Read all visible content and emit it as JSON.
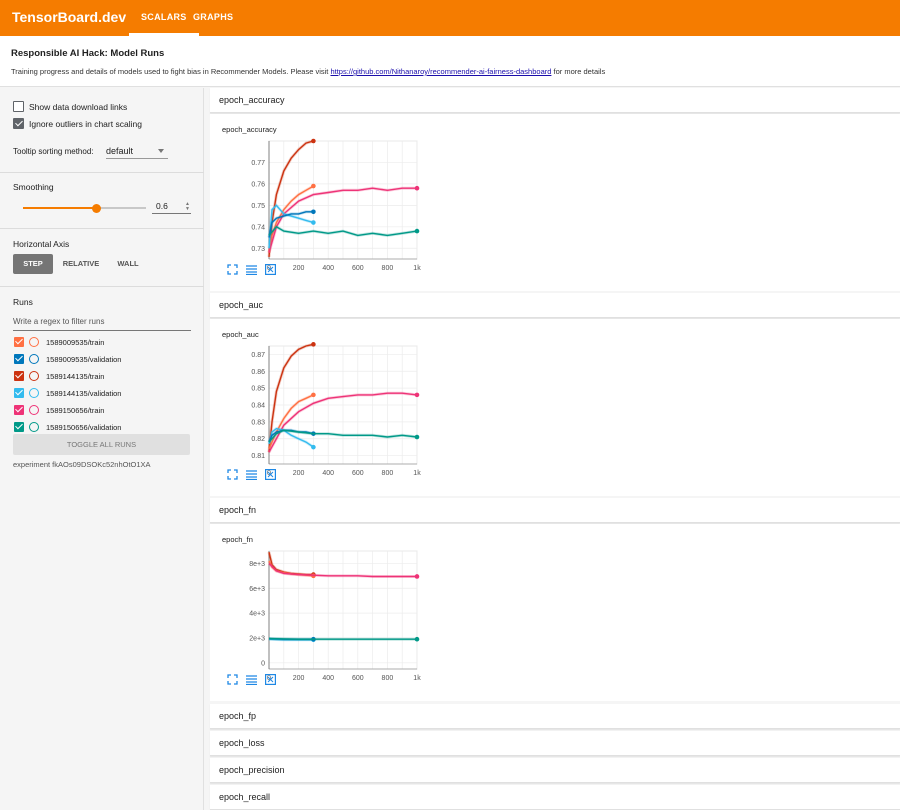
{
  "app": {
    "title": "TensorBoard.dev",
    "tabs": [
      {
        "label": "SCALARS",
        "active": true
      },
      {
        "label": "GRAPHS",
        "active": false
      }
    ],
    "accent_color": "#f57c00"
  },
  "header": {
    "title": "Responsible AI Hack: Model Runs",
    "desc_before": "Training progress and details of models used to fight bias in Recommender Models. Please visit ",
    "link_text": "https://github.com/Nithanaroy/recommender-ai-fairness-dashboard",
    "desc_after": " for more details"
  },
  "sidebar": {
    "show_download_label": "Show data download links",
    "show_download_checked": false,
    "ignore_outliers_label": "Ignore outliers in chart scaling",
    "ignore_outliers_checked": true,
    "tooltip_label": "Tooltip sorting method:",
    "tooltip_value": "default",
    "smoothing_label": "Smoothing",
    "smoothing_value": "0.6",
    "smoothing_fraction": 0.6,
    "axis_label": "Horizontal Axis",
    "axis_options": [
      "STEP",
      "RELATIVE",
      "WALL"
    ],
    "axis_selected": "STEP",
    "runs_label": "Runs",
    "filter_placeholder": "Write a regex to filter runs",
    "runs": [
      {
        "name": "1589009535/train",
        "color": "#ff7043"
      },
      {
        "name": "1589009535/validation",
        "color": "#0077bb"
      },
      {
        "name": "1589144135/train",
        "color": "#cc3311"
      },
      {
        "name": "1589144135/validation",
        "color": "#33bbee"
      },
      {
        "name": "1589150656/train",
        "color": "#ee3377"
      },
      {
        "name": "1589150656/validation",
        "color": "#009988"
      }
    ],
    "toggle_all_label": "TOGGLE ALL RUNS",
    "experiment_id": "experiment fkAOs09DSOKc52nhOtO1XA"
  },
  "panes": [
    {
      "name": "epoch_accuracy",
      "expanded": true
    },
    {
      "name": "epoch_auc",
      "expanded": true
    },
    {
      "name": "epoch_fn",
      "expanded": true
    },
    {
      "name": "epoch_fp",
      "expanded": false
    },
    {
      "name": "epoch_loss",
      "expanded": false
    },
    {
      "name": "epoch_precision",
      "expanded": false
    },
    {
      "name": "epoch_recall",
      "expanded": false
    }
  ],
  "chart_data": [
    {
      "type": "line",
      "title": "epoch_accuracy",
      "xticks": [
        "0",
        "200",
        "400",
        "600",
        "800",
        "1k"
      ],
      "yticks": [
        "0.73",
        "0.74",
        "0.75",
        "0.76",
        "0.77"
      ],
      "xlim": [
        0,
        1000
      ],
      "ylim": [
        0.725,
        0.78
      ],
      "grid": true,
      "series": [
        {
          "run": "1589144135/train",
          "color": "#cc3311",
          "x": [
            0,
            20,
            50,
            100,
            150,
            200,
            250,
            300
          ],
          "y": [
            0.726,
            0.742,
            0.755,
            0.766,
            0.772,
            0.776,
            0.779,
            0.78
          ]
        },
        {
          "run": "1589009535/train",
          "color": "#ff7043",
          "x": [
            0,
            20,
            50,
            100,
            150,
            200,
            250,
            300
          ],
          "y": [
            0.728,
            0.736,
            0.742,
            0.748,
            0.752,
            0.755,
            0.757,
            0.759
          ]
        },
        {
          "run": "1589150656/train",
          "color": "#ee3377",
          "x": [
            0,
            50,
            100,
            200,
            300,
            400,
            500,
            600,
            700,
            800,
            900,
            1000
          ],
          "y": [
            0.728,
            0.74,
            0.746,
            0.752,
            0.755,
            0.756,
            0.757,
            0.757,
            0.758,
            0.757,
            0.758,
            0.758
          ]
        },
        {
          "run": "1589144135/validation",
          "color": "#33bbee",
          "x": [
            0,
            20,
            50,
            100,
            150,
            200,
            250,
            300
          ],
          "y": [
            0.73,
            0.748,
            0.75,
            0.746,
            0.745,
            0.744,
            0.743,
            0.742
          ]
        },
        {
          "run": "1589009535/validation",
          "color": "#0077bb",
          "x": [
            0,
            20,
            50,
            100,
            150,
            200,
            250,
            300
          ],
          "y": [
            0.735,
            0.742,
            0.744,
            0.745,
            0.746,
            0.746,
            0.747,
            0.747
          ]
        },
        {
          "run": "1589150656/validation",
          "color": "#009988",
          "x": [
            0,
            50,
            100,
            200,
            300,
            400,
            500,
            600,
            700,
            800,
            900,
            1000
          ],
          "y": [
            0.736,
            0.74,
            0.738,
            0.737,
            0.738,
            0.737,
            0.738,
            0.736,
            0.737,
            0.736,
            0.737,
            0.738
          ]
        }
      ]
    },
    {
      "type": "line",
      "title": "epoch_auc",
      "xticks": [
        "0",
        "200",
        "400",
        "600",
        "800",
        "1k"
      ],
      "yticks": [
        "0.81",
        "0.82",
        "0.83",
        "0.84",
        "0.85",
        "0.86",
        "0.87"
      ],
      "xlim": [
        0,
        1000
      ],
      "ylim": [
        0.805,
        0.875
      ],
      "grid": true,
      "series": [
        {
          "run": "1589144135/train",
          "color": "#cc3311",
          "x": [
            0,
            20,
            50,
            100,
            150,
            200,
            250,
            300
          ],
          "y": [
            0.812,
            0.83,
            0.848,
            0.862,
            0.869,
            0.873,
            0.875,
            0.876
          ]
        },
        {
          "run": "1589009535/train",
          "color": "#ff7043",
          "x": [
            0,
            20,
            50,
            100,
            150,
            200,
            250,
            300
          ],
          "y": [
            0.814,
            0.818,
            0.824,
            0.832,
            0.838,
            0.842,
            0.844,
            0.846
          ]
        },
        {
          "run": "1589150656/train",
          "color": "#ee3377",
          "x": [
            0,
            50,
            100,
            200,
            300,
            400,
            500,
            600,
            700,
            800,
            900,
            1000
          ],
          "y": [
            0.812,
            0.82,
            0.828,
            0.836,
            0.841,
            0.844,
            0.845,
            0.846,
            0.846,
            0.847,
            0.847,
            0.846
          ]
        },
        {
          "run": "1589144135/validation",
          "color": "#33bbee",
          "x": [
            0,
            20,
            50,
            100,
            150,
            200,
            250,
            300
          ],
          "y": [
            0.817,
            0.824,
            0.826,
            0.825,
            0.822,
            0.82,
            0.818,
            0.815
          ]
        },
        {
          "run": "1589009535/validation",
          "color": "#0077bb",
          "x": [
            0,
            20,
            50,
            100,
            150,
            200,
            250,
            300
          ],
          "y": [
            0.818,
            0.822,
            0.824,
            0.825,
            0.825,
            0.824,
            0.824,
            0.823
          ]
        },
        {
          "run": "1589150656/validation",
          "color": "#009988",
          "x": [
            0,
            50,
            100,
            200,
            300,
            400,
            500,
            600,
            700,
            800,
            900,
            1000
          ],
          "y": [
            0.818,
            0.823,
            0.825,
            0.824,
            0.823,
            0.823,
            0.822,
            0.822,
            0.822,
            0.821,
            0.822,
            0.821
          ]
        }
      ]
    },
    {
      "type": "line",
      "title": "epoch_fn",
      "xticks": [
        "0",
        "200",
        "400",
        "600",
        "800",
        "1k"
      ],
      "yticks": [
        "0",
        "2e+3",
        "4e+3",
        "6e+3",
        "8e+3"
      ],
      "xlim": [
        0,
        1000
      ],
      "ylim": [
        -500,
        9000
      ],
      "grid": true,
      "series": [
        {
          "run": "1589144135/train",
          "color": "#cc3311",
          "x": [
            0,
            20,
            50,
            100,
            150,
            200,
            250,
            300
          ],
          "y": [
            8900,
            7900,
            7500,
            7300,
            7200,
            7150,
            7100,
            7100
          ]
        },
        {
          "run": "1589009535/train",
          "color": "#ff7043",
          "x": [
            0,
            20,
            50,
            100,
            150,
            200,
            250,
            300
          ],
          "y": [
            8200,
            7700,
            7400,
            7250,
            7150,
            7100,
            7050,
            7000
          ]
        },
        {
          "run": "1589150656/train",
          "color": "#ee3377",
          "x": [
            0,
            50,
            100,
            200,
            300,
            400,
            500,
            600,
            700,
            800,
            900,
            1000
          ],
          "y": [
            8000,
            7400,
            7200,
            7100,
            7050,
            7000,
            7000,
            7000,
            6950,
            6950,
            6950,
            6950
          ]
        },
        {
          "run": "1589144135/validation",
          "color": "#33bbee",
          "x": [
            0,
            100,
            200,
            300
          ],
          "y": [
            1900,
            1850,
            1850,
            1850
          ]
        },
        {
          "run": "1589009535/validation",
          "color": "#0077bb",
          "x": [
            0,
            100,
            200,
            300
          ],
          "y": [
            1950,
            1900,
            1900,
            1900
          ]
        },
        {
          "run": "1589150656/validation",
          "color": "#009988",
          "x": [
            0,
            200,
            400,
            600,
            800,
            1000
          ],
          "y": [
            1950,
            1900,
            1900,
            1900,
            1900,
            1900
          ]
        }
      ]
    }
  ]
}
